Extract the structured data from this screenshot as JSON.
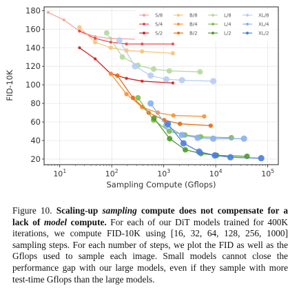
{
  "chart_data": {
    "type": "line",
    "title": "",
    "xlabel": "Sampling Compute (Gflops)",
    "ylabel": "FID-10K",
    "x_scale": "log",
    "xlim": [
      5,
      160000
    ],
    "ylim": [
      14,
      184
    ],
    "x_ticks": [
      {
        "value": 10,
        "base": "10",
        "exp": "1"
      },
      {
        "value": 100,
        "base": "10",
        "exp": "2"
      },
      {
        "value": 1000,
        "base": "10",
        "exp": "3"
      },
      {
        "value": 10000,
        "base": "10",
        "exp": "4"
      },
      {
        "value": 100000,
        "base": "10",
        "exp": "5"
      }
    ],
    "y_ticks": [
      "20",
      "40",
      "60",
      "80",
      "100",
      "120",
      "140",
      "160",
      "180"
    ],
    "grid": true,
    "legend_position": "top-right",
    "step_counts": [
      16,
      32,
      64,
      128,
      256,
      1000
    ],
    "series": [
      {
        "name": "S/8",
        "color": "#f4a3a0",
        "x": [
          6,
          12,
          24,
          48,
          96,
          375
        ],
        "y": [
          178,
          170,
          158,
          152,
          150,
          149
        ]
      },
      {
        "name": "S/4",
        "color": "#e84a4a",
        "x": [
          24,
          48,
          96,
          192,
          384,
          1500
        ],
        "y": [
          158,
          150,
          146,
          144,
          144,
          144
        ]
      },
      {
        "name": "S/2",
        "color": "#d42020",
        "x": [
          24,
          48,
          96,
          192,
          384,
          1500
        ],
        "y": [
          140,
          128,
          112,
          107,
          104,
          102
        ]
      },
      {
        "name": "B/8",
        "color": "#f9c37e",
        "x": [
          24,
          48,
          96,
          192,
          384,
          1500
        ],
        "y": [
          162,
          146,
          140,
          137,
          136,
          134
        ]
      },
      {
        "name": "B/4",
        "color": "#f5923a",
        "x": [
          96,
          192,
          384,
          768,
          1536,
          6000
        ],
        "y": [
          112,
          90,
          76,
          70,
          67,
          66
        ]
      },
      {
        "name": "B/2",
        "color": "#e86b0f",
        "x": [
          128,
          256,
          512,
          1024,
          2048,
          8000
        ],
        "y": [
          110,
          86,
          70,
          62,
          58,
          56
        ]
      },
      {
        "name": "L/8",
        "color": "#b5d99c",
        "x": [
          80,
          160,
          320,
          640,
          1280,
          5000
        ],
        "y": [
          156,
          130,
          121,
          117,
          115,
          114
        ]
      },
      {
        "name": "L/4",
        "color": "#7bbf4f",
        "x": [
          320,
          640,
          1280,
          2560,
          5120,
          20000
        ],
        "y": [
          86,
          62,
          50,
          46,
          44,
          43
        ]
      },
      {
        "name": "L/2",
        "color": "#4f9a2e",
        "x": [
          650,
          1300,
          2600,
          5200,
          10400,
          40000
        ],
        "y": [
          64,
          42,
          30,
          26,
          24,
          23
        ]
      },
      {
        "name": "XL/8",
        "color": "#b7cdf6",
        "x": [
          140,
          280,
          560,
          1120,
          2240,
          9000
        ],
        "y": [
          148,
          120,
          110,
          106,
          105,
          104
        ]
      },
      {
        "name": "XL/4",
        "color": "#8ab0f0",
        "x": [
          560,
          1120,
          2240,
          4480,
          8960,
          35000
        ],
        "y": [
          80,
          56,
          46,
          43,
          42,
          42
        ]
      },
      {
        "name": "XL/2",
        "color": "#4a7ee0",
        "x": [
          1200,
          2400,
          4800,
          9600,
          19200,
          75000
        ],
        "y": [
          58,
          37,
          28,
          24,
          22,
          21
        ]
      }
    ]
  },
  "caption": {
    "label": "Figure 10.",
    "bold_1": "Scaling-up",
    "bold_italic_1": "sampling",
    "bold_2": "compute does not compensate for a lack of",
    "bold_italic_2": "model",
    "bold_3": "compute.",
    "body": "For each of our DiT models trained for 400K iterations, we compute FID-10K using [16, 32, 64, 128, 256, 1000] sampling steps. For each number of steps, we plot the FID as well as the Gflops used to sample each image. Small models cannot close the performance gap with our large models, even if they sample with more test-time Gflops than the large models."
  }
}
